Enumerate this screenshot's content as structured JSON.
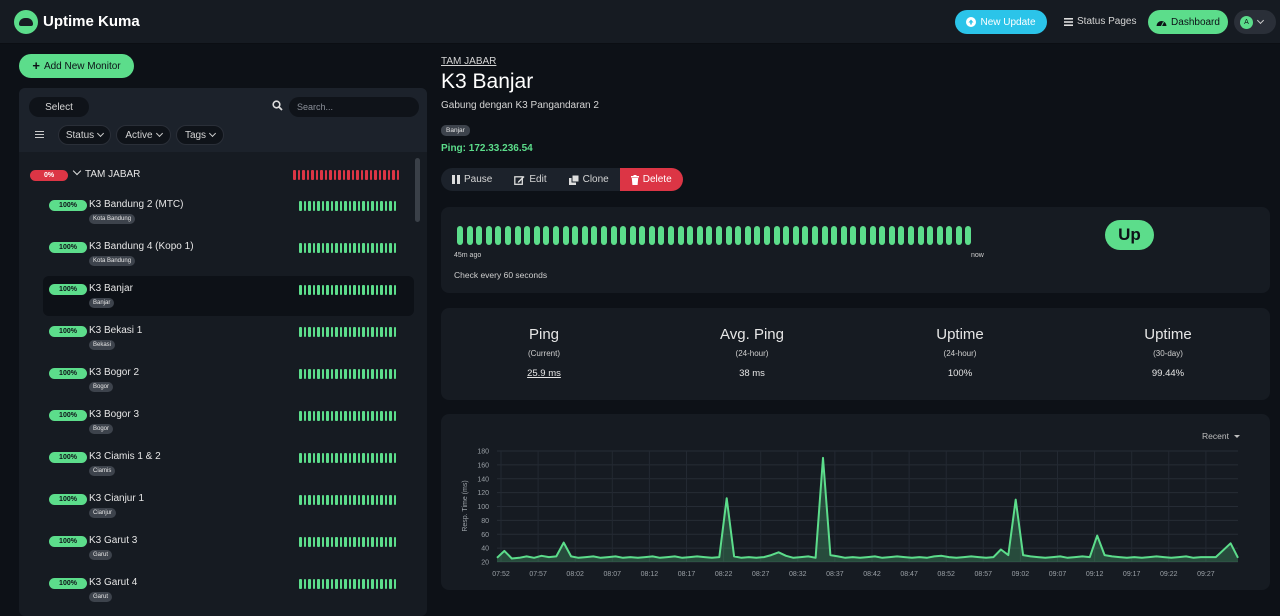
{
  "app": {
    "title": "Uptime Kuma"
  },
  "nav": {
    "new_update": "New Update",
    "status_pages": "Status Pages",
    "dashboard": "Dashboard",
    "avatar_letter": "A"
  },
  "sidebar": {
    "add_monitor": "Add New Monitor",
    "select_label": "Select",
    "search_placeholder": "Search...",
    "filters": [
      "Status",
      "Active",
      "Tags"
    ],
    "group": {
      "name": "TAM JABAR",
      "uptime": "0%"
    },
    "monitors": [
      {
        "name": "K3 Bandung 2 (MTC)",
        "tag": "Kota Bandung",
        "uptime": "100%"
      },
      {
        "name": "K3 Bandung 4 (Kopo 1)",
        "tag": "Kota Bandung",
        "uptime": "100%"
      },
      {
        "name": "K3 Banjar",
        "tag": "Banjar",
        "uptime": "100%"
      },
      {
        "name": "K3 Bekasi 1",
        "tag": "Bekasi",
        "uptime": "100%"
      },
      {
        "name": "K3 Bogor 2",
        "tag": "Bogor",
        "uptime": "100%"
      },
      {
        "name": "K3 Bogor 3",
        "tag": "Bogor",
        "uptime": "100%"
      },
      {
        "name": "K3 Ciamis 1 & 2",
        "tag": "Ciamis",
        "uptime": "100%"
      },
      {
        "name": "K3 Cianjur 1",
        "tag": "Cianjur",
        "uptime": "100%"
      },
      {
        "name": "K3 Garut 3",
        "tag": "Garut",
        "uptime": "100%"
      },
      {
        "name": "K3 Garut 4",
        "tag": "Garut",
        "uptime": "100%"
      }
    ]
  },
  "detail": {
    "breadcrumb": "TAM JABAR",
    "title": "K3 Banjar",
    "description": "Gabung dengan K3 Pangandaran 2",
    "tag": "Banjar",
    "ping_target": "Ping: 172.33.236.54",
    "actions": {
      "pause": "Pause",
      "edit": "Edit",
      "clone": "Clone",
      "delete": "Delete"
    },
    "heartbeat": {
      "left_label": "45m ago",
      "right_label": "now",
      "interval": "Check every 60 seconds",
      "status": "Up"
    },
    "stats": [
      {
        "title": "Ping",
        "sub": "(Current)",
        "value": "25.9 ms"
      },
      {
        "title": "Avg. Ping",
        "sub": "(24-hour)",
        "value": "38 ms"
      },
      {
        "title": "Uptime",
        "sub": "(24-hour)",
        "value": "100%"
      },
      {
        "title": "Uptime",
        "sub": "(30-day)",
        "value": "99.44%"
      }
    ],
    "chart_period": "Recent"
  },
  "colors": {
    "accent": "#5cdd8b",
    "danger": "#dc3545",
    "info": "#2bc4e9",
    "bg": "#0d1117",
    "panel": "#161b22"
  },
  "chart_data": {
    "type": "line",
    "title": "",
    "xlabel": "",
    "ylabel": "Resp. Time (ms)",
    "ylim": [
      20,
      180
    ],
    "yticks": [
      20,
      40,
      60,
      80,
      100,
      120,
      140,
      160,
      180
    ],
    "xticks": [
      "07:52",
      "07:57",
      "08:02",
      "08:07",
      "08:12",
      "08:17",
      "08:22",
      "08:27",
      "08:32",
      "08:37",
      "08:42",
      "08:47",
      "08:52",
      "08:57",
      "09:02",
      "09:07",
      "09:12",
      "09:17",
      "09:22",
      "09:27"
    ],
    "series": [
      {
        "name": "Ping",
        "x": [
          0,
          1,
          2,
          3,
          4,
          5,
          6,
          7,
          8,
          9,
          10,
          11,
          12,
          13,
          14,
          15,
          16,
          17,
          18,
          19,
          20,
          21,
          22,
          23,
          24,
          25,
          26,
          27,
          28,
          29,
          30,
          31,
          32,
          33,
          34,
          35,
          36,
          37,
          38,
          39,
          40,
          41,
          42,
          43,
          44,
          45,
          46,
          47,
          48,
          49,
          50,
          51,
          52,
          53,
          54,
          55,
          56,
          57,
          58,
          59,
          60,
          61,
          62,
          63,
          64,
          65,
          66,
          67,
          68,
          69,
          70,
          71,
          72,
          73,
          74,
          75,
          76,
          77,
          78,
          79,
          80,
          81,
          82,
          83,
          84,
          85,
          86,
          87,
          88,
          89,
          90,
          91,
          92,
          93,
          94,
          95,
          97,
          99,
          100
        ],
        "y": [
          26,
          36,
          25,
          26,
          28,
          26,
          29,
          27,
          28,
          48,
          28,
          26,
          27,
          28,
          26,
          27,
          28,
          26,
          27,
          26,
          27,
          28,
          26,
          27,
          28,
          26,
          27,
          28,
          27,
          26,
          27,
          112,
          28,
          26,
          27,
          26,
          27,
          30,
          34,
          29,
          26,
          27,
          28,
          26,
          170,
          30,
          28,
          26,
          27,
          26,
          27,
          28,
          26,
          27,
          28,
          27,
          26,
          27,
          26,
          28,
          29,
          27,
          26,
          27,
          28,
          27,
          26,
          27,
          38,
          30,
          110,
          30,
          28,
          27,
          26,
          27,
          28,
          26,
          27,
          28,
          27,
          58,
          30,
          28,
          27,
          26,
          27,
          26,
          27,
          28,
          27,
          26,
          27,
          28,
          26,
          27,
          27,
          47,
          26
        ]
      }
    ]
  }
}
